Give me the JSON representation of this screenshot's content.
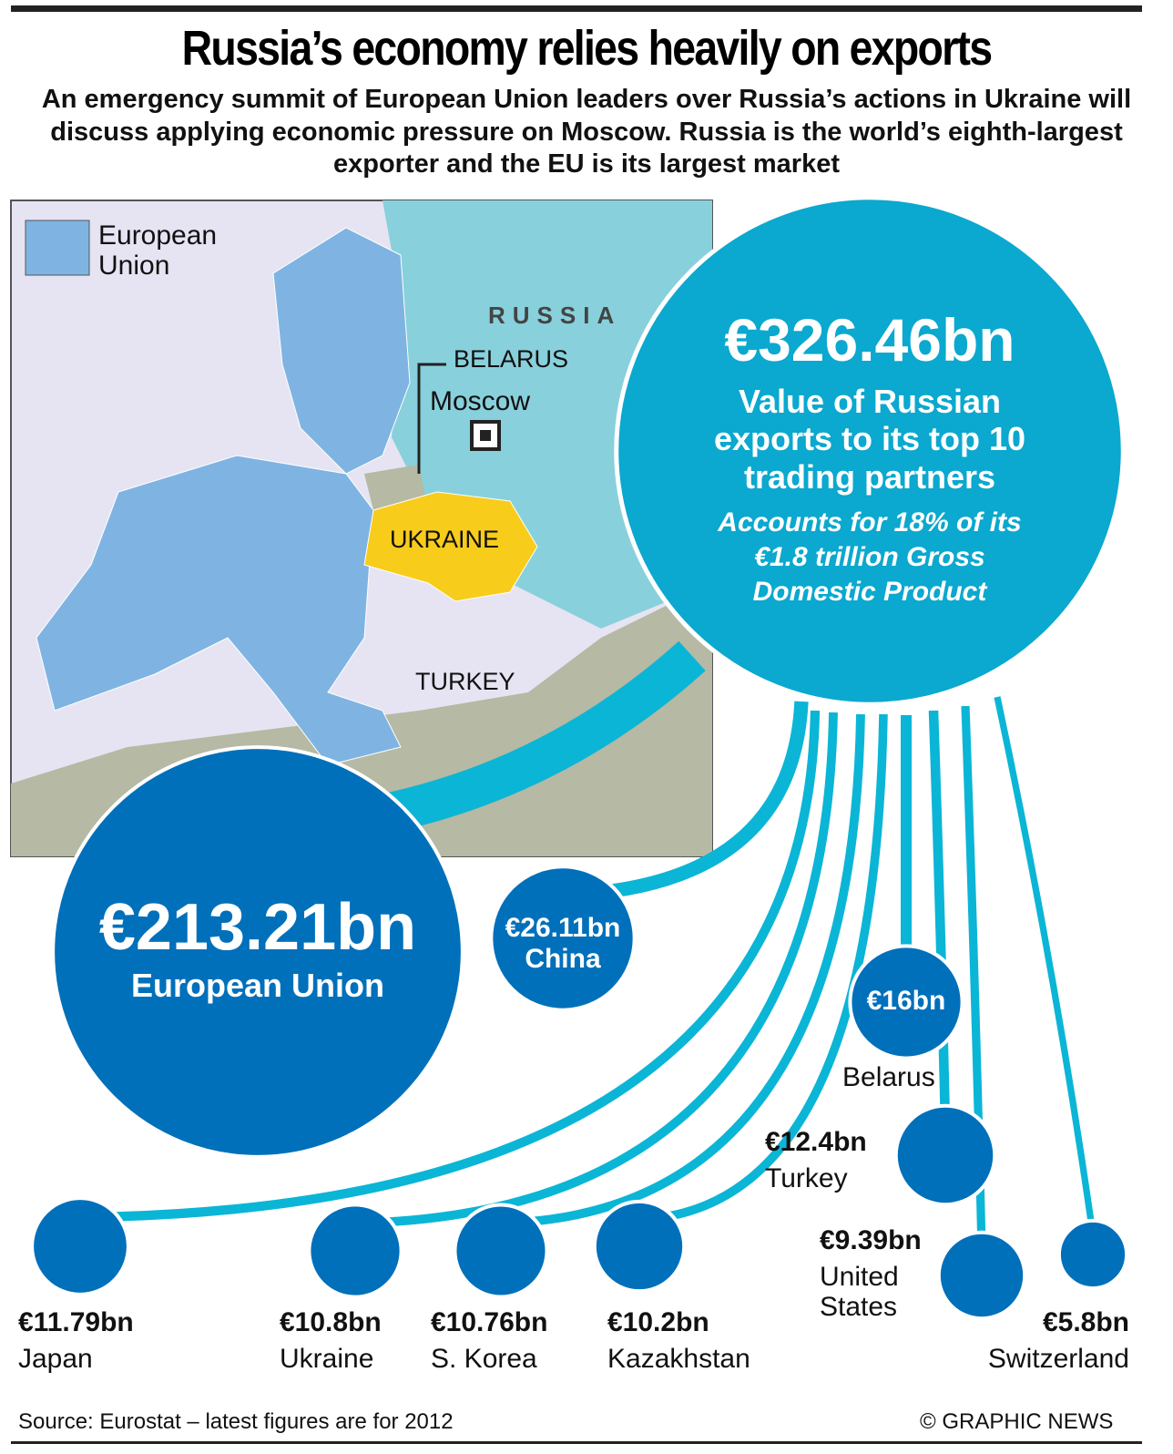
{
  "title": "Russia’s economy relies heavily on exports",
  "subtitle": "An emergency summit of European Union leaders over Russia’s actions in Ukraine will discuss applying economic pressure on Moscow. Russia is the world’s eighth-largest exporter and the EU is its largest market",
  "map": {
    "legend": "European Union",
    "russia": "RUSSIA",
    "belarus": "BELARUS",
    "moscow": "Moscow",
    "ukraine": "UKRAINE",
    "turkey": "TURKEY"
  },
  "chart_data": {
    "type": "bubble",
    "total": 326.46,
    "total_label": "€326.46bn",
    "total_caption": "Value of Russian exports to its top 10 trading partners",
    "total_note": "Accounts for 18% of its €1.8 trillion Gross Domestic Product",
    "categories": [
      "European Union",
      "China",
      "Belarus",
      "Turkey",
      "Japan",
      "Ukraine",
      "S. Korea",
      "Kazakhstan",
      "United States",
      "Switzerland"
    ],
    "values": [
      213.21,
      26.11,
      16,
      12.4,
      11.79,
      10.8,
      10.76,
      10.2,
      9.39,
      5.8
    ],
    "value_labels": [
      "€213.21bn",
      "€26.11bn",
      "€16bn",
      "€12.4bn",
      "€11.79bn",
      "€10.8bn",
      "€10.76bn",
      "€10.2bn",
      "€9.39bn",
      "€5.8bn"
    ],
    "bubble_color": "#0070bb",
    "total_color": "#0ba8cf",
    "link_color": "#0bb5d6"
  },
  "source": "Source: Eurostat – latest figures are for 2012",
  "credit": "© GRAPHIC NEWS"
}
